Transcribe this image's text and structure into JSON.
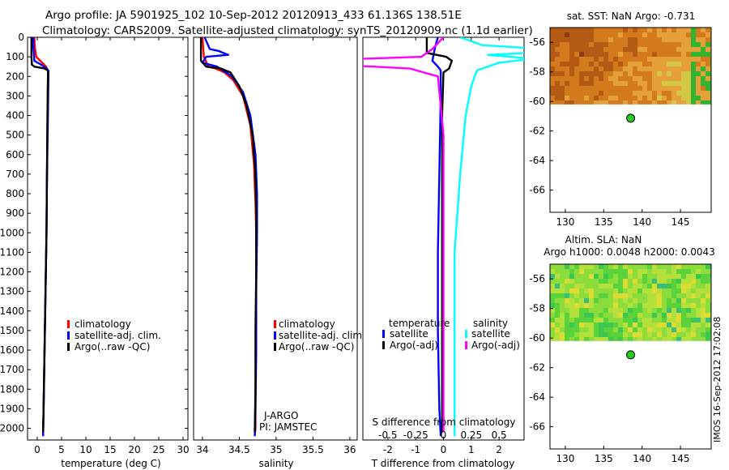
{
  "figure": {
    "title_line1": "Argo profile: JA 5901925_102 10-Sep-2012 20120913_433 61.136S 138.51E",
    "title_line2": "Climatology: CARS2009. Satellite-adjusted climatology: synTS_20120909.nc (1.1d earlier)",
    "footer_stamp": "IMOS 16-Sep-2012 17:02:08",
    "colors": {
      "climatology": "#ff0000",
      "satellite": "#0000ff",
      "argo": "#000000",
      "sal_satellite": "#00ffff",
      "sal_argo": "#ff00ff",
      "marker": "#22cc22"
    }
  },
  "chart_data": [
    {
      "type": "line",
      "id": "temperature_profile",
      "xlabel": "temperature (deg C)",
      "ylabel": "",
      "xlim": [
        -2,
        31
      ],
      "ylim": [
        2060,
        0
      ],
      "xticks": [
        0,
        5,
        10,
        15,
        20,
        25,
        30
      ],
      "yticks": [
        0,
        100,
        200,
        300,
        400,
        500,
        600,
        700,
        800,
        900,
        1000,
        1100,
        1200,
        1300,
        1400,
        1500,
        1600,
        1700,
        1800,
        1900,
        2000
      ],
      "legend": [
        "climatology",
        "satellite-adj. clim.",
        "Argo(..raw -QC)"
      ],
      "legend_position": "lower-left",
      "series": [
        {
          "name": "climatology",
          "color": "#ff0000",
          "x": [
            -0.6,
            -0.5,
            -0.2,
            1.0,
            1.8,
            2.2,
            2.2,
            2.1,
            2.0,
            1.9,
            1.7,
            1.5,
            1.3,
            1.2
          ],
          "y": [
            0,
            50,
            100,
            130,
            150,
            170,
            200,
            400,
            700,
            1000,
            1300,
            1600,
            1900,
            2040
          ]
        },
        {
          "name": "satellite-adj. clim.",
          "color": "#0000ff",
          "x": [
            -0.8,
            -0.8,
            -0.6,
            0.8,
            1.9,
            2.3,
            2.3,
            2.2,
            2.0,
            1.9,
            1.7,
            1.5,
            1.3,
            1.2
          ],
          "y": [
            0,
            50,
            120,
            140,
            160,
            170,
            200,
            400,
            700,
            1000,
            1300,
            1600,
            1900,
            2040
          ]
        },
        {
          "name": "Argo(..raw -QC)",
          "color": "#000000",
          "x": [
            -1.2,
            -1.2,
            -1.1,
            -0.6,
            1.5,
            2.2,
            2.2,
            2.1,
            2.0,
            1.9,
            1.7,
            1.5,
            1.3,
            1.2
          ],
          "y": [
            0,
            100,
            140,
            150,
            160,
            170,
            200,
            400,
            700,
            1000,
            1300,
            1600,
            1900,
            2020
          ]
        }
      ]
    },
    {
      "type": "line",
      "id": "salinity_profile",
      "xlabel": "salinity",
      "ylabel": "",
      "xlim": [
        33.88,
        36.1
      ],
      "ylim": [
        2060,
        0
      ],
      "xticks": [
        34,
        34.5,
        35,
        35.5,
        36
      ],
      "xtick_labels": [
        "34",
        "34.5",
        "35",
        "35.5",
        "36"
      ],
      "legend": [
        "climatology",
        "satellite-adj. clim.",
        "Argo(..raw -QC)"
      ],
      "legend_position": "lower-right",
      "annotations": [
        "J-ARGO",
        "PI: JAMSTEC"
      ],
      "series": [
        {
          "name": "climatology",
          "color": "#ff0000",
          "x": [
            34.0,
            34.02,
            34.08,
            34.18,
            34.3,
            34.42,
            34.55,
            34.65,
            34.7,
            34.72,
            34.73,
            34.73,
            34.73,
            34.72,
            34.72,
            34.71
          ],
          "y": [
            0,
            100,
            150,
            160,
            180,
            220,
            300,
            450,
            650,
            850,
            1000,
            1200,
            1500,
            1800,
            2000,
            2040
          ]
        },
        {
          "name": "satellite-adj. clim.",
          "color": "#0000ff",
          "x": [
            34.03,
            34.1,
            34.22,
            34.35,
            34.05,
            34.0,
            34.2,
            34.4,
            34.55,
            34.65,
            34.72,
            34.74,
            34.74,
            34.73,
            34.73,
            34.72,
            34.71
          ],
          "y": [
            0,
            60,
            70,
            90,
            100,
            130,
            150,
            200,
            280,
            400,
            600,
            800,
            1000,
            1300,
            1600,
            1900,
            2040
          ]
        },
        {
          "name": "Argo(..raw -QC)",
          "color": "#000000",
          "x": [
            33.98,
            33.98,
            34.05,
            34.25,
            34.38,
            34.5,
            34.6,
            34.68,
            34.72,
            34.73,
            34.73,
            34.72,
            34.72,
            34.71
          ],
          "y": [
            0,
            120,
            150,
            160,
            180,
            250,
            350,
            500,
            700,
            900,
            1200,
            1500,
            1800,
            2020
          ]
        }
      ]
    },
    {
      "type": "line",
      "id": "difference_profile",
      "xlabel": "T difference from climatology",
      "xlabel_top": "S difference from climatology",
      "ylabel": "",
      "xlim": [
        -2.9,
        2.9
      ],
      "ylim": [
        2060,
        0
      ],
      "xticks": [
        -2,
        -1,
        0,
        1,
        2
      ],
      "s_xticks": [
        -0.5,
        -0.25,
        0,
        0.25,
        0.5
      ],
      "s_xtick_labels": [
        "-0.5",
        "-0.25",
        "0",
        "0.25",
        "0.5"
      ],
      "legend_temperature": {
        "title": "temperature",
        "items": [
          "satellite",
          "Argo(-adj)"
        ]
      },
      "legend_salinity": {
        "title": "salinity",
        "items": [
          "satellite",
          "Argo(-adj)"
        ]
      },
      "series": [
        {
          "name": "temperature satellite",
          "color": "#0000ff",
          "x": [
            -0.2,
            -0.3,
            -0.4,
            -0.2,
            -0.1,
            -0.1,
            -0.15,
            -0.2,
            -0.2,
            -0.15,
            -0.1
          ],
          "y": [
            0,
            50,
            120,
            150,
            170,
            300,
            700,
            1100,
            1500,
            1900,
            2040
          ]
        },
        {
          "name": "temperature Argo(-adj)",
          "color": "#000000",
          "x": [
            -0.6,
            -0.6,
            0.1,
            0.3,
            0.2,
            0.0,
            -0.05,
            -0.05,
            -0.05,
            -0.05,
            -0.05
          ],
          "y": [
            0,
            80,
            100,
            120,
            160,
            180,
            400,
            800,
            1200,
            1600,
            2020
          ]
        },
        {
          "name": "salinity satellite",
          "color": "#00ffff",
          "x": [
            0.15,
            0.35,
            0.9,
            1.1,
            0.4,
            0.8,
            0.5,
            0.3,
            0.25,
            0.2,
            0.15,
            0.1,
            0.1,
            0.1
          ],
          "y": [
            0,
            40,
            60,
            70,
            90,
            110,
            130,
            170,
            250,
            400,
            700,
            1100,
            1600,
            2040
          ]
        },
        {
          "name": "salinity Argo(-adj)",
          "color": "#ff00ff",
          "x": [
            0.0,
            -0.1,
            -0.2,
            -2.0,
            -0.8,
            -0.3,
            -0.05,
            0.0,
            0.0,
            0.0,
            0.0
          ],
          "y": [
            0,
            60,
            100,
            135,
            145,
            160,
            200,
            500,
            1000,
            1500,
            2020
          ]
        }
      ]
    },
    {
      "type": "heatmap",
      "id": "sst_map",
      "title": "sat. SST: NaN Argo: -0.731",
      "xlim": [
        128,
        149
      ],
      "ylim": [
        -67.5,
        -55
      ],
      "xticks": [
        130,
        135,
        140,
        145
      ],
      "yticks": [
        -56,
        -58,
        -60,
        -62,
        -64,
        -66
      ],
      "data_extent_lat": [
        -60.2,
        -55
      ],
      "argo_position": {
        "lon": 138.51,
        "lat": -61.136
      }
    },
    {
      "type": "heatmap",
      "id": "sla_map",
      "title_line1": "Altim. SLA: NaN",
      "title_line2": "Argo h1000: 0.0048 h2000: 0.0043",
      "xlim": [
        128,
        149
      ],
      "ylim": [
        -67.5,
        -55
      ],
      "xticks": [
        130,
        135,
        140,
        145
      ],
      "yticks": [
        -56,
        -58,
        -60,
        -62,
        -64,
        -66
      ],
      "data_extent_lat": [
        -60.2,
        -55
      ],
      "argo_position": {
        "lon": 138.51,
        "lat": -61.136
      }
    }
  ]
}
